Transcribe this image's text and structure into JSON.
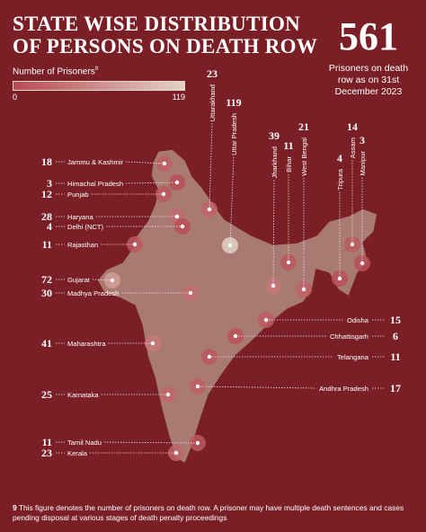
{
  "header": {
    "title_line1": "STATE WISE DISTRIBUTION",
    "title_line2": "OF PERSONS ON DEATH ROW"
  },
  "total": {
    "value": "561",
    "caption": "Prisoners on death row as on 31st December 2023"
  },
  "legend": {
    "label": "Number of Prisoners",
    "footnote_marker": "9",
    "min": 0,
    "max": 119
  },
  "states": [
    {
      "name": "Jammu & Kashmir",
      "count": 18
    },
    {
      "name": "Himachal Pradesh",
      "count": 3
    },
    {
      "name": "Punjab",
      "count": 12
    },
    {
      "name": "Haryana",
      "count": 28
    },
    {
      "name": "Delhi (NCT)",
      "count": 4
    },
    {
      "name": "Rajasthan",
      "count": 11
    },
    {
      "name": "Gujarat",
      "count": 72
    },
    {
      "name": "Madhya Pradesh",
      "count": 30
    },
    {
      "name": "Maharashtra",
      "count": 41
    },
    {
      "name": "Karnataka",
      "count": 25
    },
    {
      "name": "Tamil Nadu",
      "count": 11
    },
    {
      "name": "Kerala",
      "count": 23
    },
    {
      "name": "Uttarakhand",
      "count": 23
    },
    {
      "name": "Uttar Pradesh",
      "count": 119
    },
    {
      "name": "Jharkhand",
      "count": 39
    },
    {
      "name": "Bihar",
      "count": 11
    },
    {
      "name": "West Bengal",
      "count": 21
    },
    {
      "name": "Tripura",
      "count": 4
    },
    {
      "name": "Assam",
      "count": 14
    },
    {
      "name": "Manipur",
      "count": 3
    },
    {
      "name": "Odisha",
      "count": 15
    },
    {
      "name": "Chhattisgarh",
      "count": 6
    },
    {
      "name": "Telangana",
      "count": 11
    },
    {
      "name": "Andhra Pradesh",
      "count": 17
    }
  ],
  "footnote": {
    "marker": "9",
    "text": "This figure denotes the number of prisoners on death row. A prisoner may have multiple death sentences and cases pending disposal at various stages of death penalty proceedings"
  }
}
